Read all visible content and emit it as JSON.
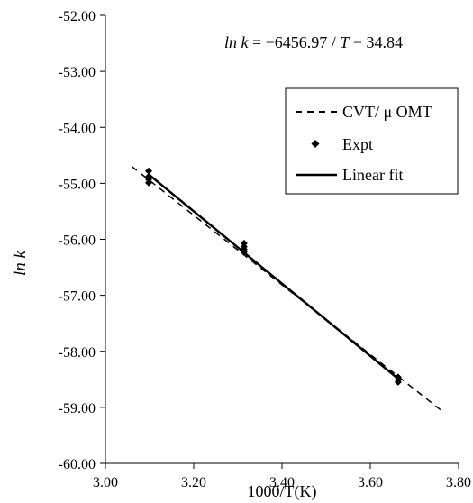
{
  "chart_data": {
    "type": "scatter",
    "xlabel": "1000/T(K)",
    "ylabel": "ln k",
    "xlim": [
      3.0,
      3.8
    ],
    "ylim": [
      -60.0,
      -52.0
    ],
    "x_ticks": [
      "3.00",
      "3.20",
      "3.40",
      "3.60",
      "3.80"
    ],
    "y_ticks": [
      "-52.00",
      "-53.00",
      "-54.00",
      "-55.00",
      "-56.00",
      "-57.00",
      "-58.00",
      "-59.00",
      "-60.00"
    ],
    "equation": "ln k = −6456.97 / T − 34.84",
    "legend_position": "top-right",
    "series": [
      {
        "name": "CVT/ μ OMT",
        "kind": "line",
        "style": "dashed",
        "color": "#000000",
        "x": [
          3.06,
          3.76
        ],
        "y": [
          -54.7,
          -59.05
        ]
      },
      {
        "name": "Expt",
        "kind": "points",
        "marker": "diamond",
        "color": "#000000",
        "x": [
          3.098,
          3.098,
          3.098,
          3.098,
          3.314,
          3.314,
          3.314,
          3.314,
          3.663,
          3.663,
          3.663
        ],
        "y": [
          -54.78,
          -54.88,
          -54.93,
          -54.99,
          -56.07,
          -56.13,
          -56.18,
          -56.23,
          -58.46,
          -58.51,
          -58.55
        ]
      },
      {
        "name": "Linear fit",
        "kind": "line",
        "style": "solid",
        "color": "#000000",
        "x": [
          3.098,
          3.663
        ],
        "y": [
          -54.84,
          -58.49
        ]
      }
    ]
  }
}
